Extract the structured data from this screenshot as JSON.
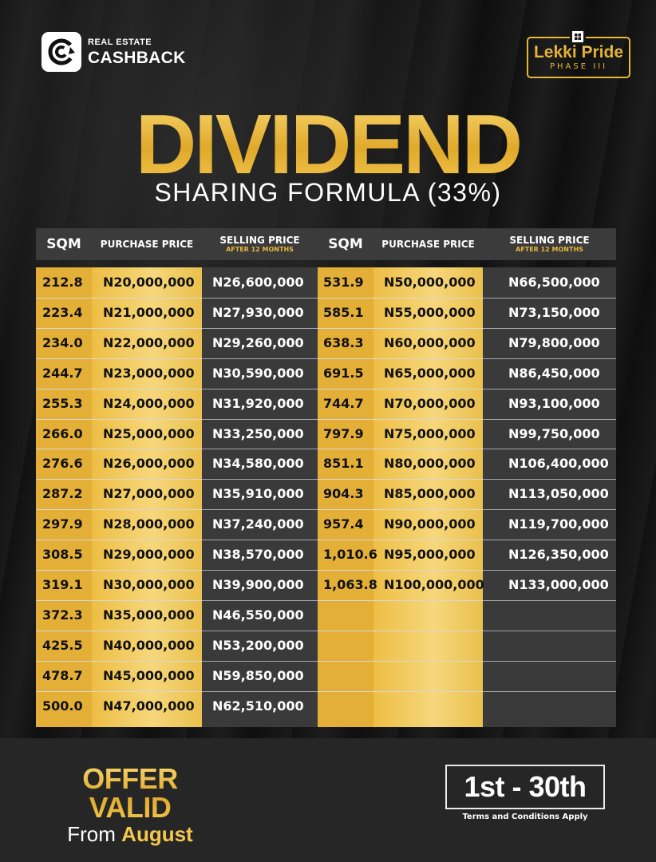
{
  "brand": {
    "top": "REAL ESTATE",
    "bottom": "CASHBACK",
    "icon": "re-cashback-logo-icon"
  },
  "badge": {
    "title": "Lekki Pride",
    "subtitle": "PHASE III",
    "icon": "house-icon",
    "accent": "#e7b73a"
  },
  "headline": {
    "title": "DIVIDEND",
    "subtitle": "SHARING FORMULA (33%)"
  },
  "table": {
    "headers": {
      "sqm": "SQM",
      "purchase": "PURCHASE PRICE",
      "selling": "SELLING PRICE",
      "selling_sub": "AFTER 12 MONTHS"
    },
    "left": [
      {
        "sqm": "212.8",
        "purchase": "N20,000,000",
        "selling": "N26,600,000"
      },
      {
        "sqm": "223.4",
        "purchase": "N21,000,000",
        "selling": "N27,930,000"
      },
      {
        "sqm": "234.0",
        "purchase": "N22,000,000",
        "selling": "N29,260,000"
      },
      {
        "sqm": "244.7",
        "purchase": "N23,000,000",
        "selling": "N30,590,000"
      },
      {
        "sqm": "255.3",
        "purchase": "N24,000,000",
        "selling": "N31,920,000"
      },
      {
        "sqm": "266.0",
        "purchase": "N25,000,000",
        "selling": "N33,250,000"
      },
      {
        "sqm": "276.6",
        "purchase": "N26,000,000",
        "selling": "N34,580,000"
      },
      {
        "sqm": "287.2",
        "purchase": "N27,000,000",
        "selling": "N35,910,000"
      },
      {
        "sqm": "297.9",
        "purchase": "N28,000,000",
        "selling": "N37,240,000"
      },
      {
        "sqm": "308.5",
        "purchase": "N29,000,000",
        "selling": "N38,570,000"
      },
      {
        "sqm": "319.1",
        "purchase": "N30,000,000",
        "selling": "N39,900,000"
      },
      {
        "sqm": "372.3",
        "purchase": "N35,000,000",
        "selling": "N46,550,000"
      },
      {
        "sqm": "425.5",
        "purchase": "N40,000,000",
        "selling": "N53,200,000"
      },
      {
        "sqm": "478.7",
        "purchase": "N45,000,000",
        "selling": "N59,850,000"
      },
      {
        "sqm": "500.0",
        "purchase": "N47,000,000",
        "selling": "N62,510,000"
      }
    ],
    "right": [
      {
        "sqm": "531.9",
        "purchase": "N50,000,000",
        "selling": "N66,500,000"
      },
      {
        "sqm": "585.1",
        "purchase": "N55,000,000",
        "selling": "N73,150,000"
      },
      {
        "sqm": "638.3",
        "purchase": "N60,000,000",
        "selling": "N79,800,000"
      },
      {
        "sqm": "691.5",
        "purchase": "N65,000,000",
        "selling": "N86,450,000"
      },
      {
        "sqm": "744.7",
        "purchase": "N70,000,000",
        "selling": "N93,100,000"
      },
      {
        "sqm": "797.9",
        "purchase": "N75,000,000",
        "selling": "N99,750,000"
      },
      {
        "sqm": "851.1",
        "purchase": "N80,000,000",
        "selling": "N106,400,000"
      },
      {
        "sqm": "904.3",
        "purchase": "N85,000,000",
        "selling": "N113,050,000"
      },
      {
        "sqm": "957.4",
        "purchase": "N90,000,000",
        "selling": "N119,700,000"
      },
      {
        "sqm": "1,010.6",
        "purchase": "N95,000,000",
        "selling": "N126,350,000"
      },
      {
        "sqm": "1,063.8",
        "purchase": "N100,000,000",
        "selling": "N133,000,000"
      }
    ]
  },
  "footer": {
    "offer_main": "OFFER VALID",
    "offer_from": "From",
    "offer_month": "August",
    "dates": "1st - 30th",
    "terms": "Terms and Conditions Apply"
  },
  "colors": {
    "gold": "#e3af37",
    "gold_light": "#f6d77b",
    "dark_cell": "#3a3a3a",
    "background": "#151515"
  }
}
